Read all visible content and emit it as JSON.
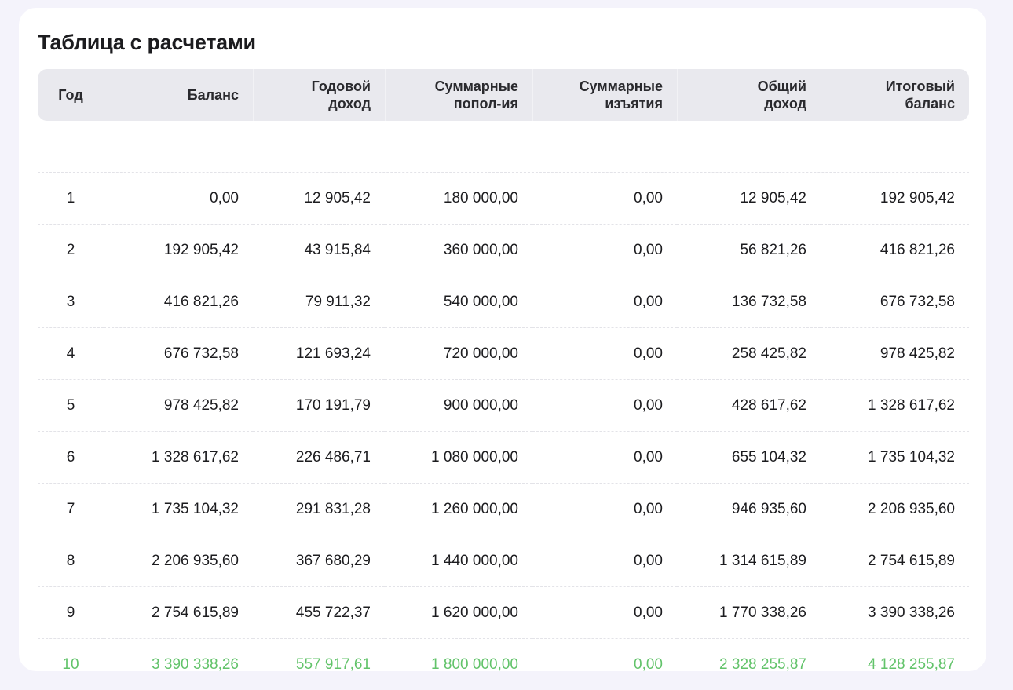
{
  "card": {
    "title": "Таблица с расчетами"
  },
  "table": {
    "headers": [
      [
        "Год"
      ],
      [
        "Баланс"
      ],
      [
        "Годовой",
        "доход"
      ],
      [
        "Суммарные",
        "попол-ия"
      ],
      [
        "Суммарные",
        "изъятия"
      ],
      [
        "Общий",
        "доход"
      ],
      [
        "Итоговый",
        "баланс"
      ]
    ],
    "rows": [
      [
        "1",
        "0,00",
        "12 905,42",
        "180 000,00",
        "0,00",
        "12 905,42",
        "192 905,42"
      ],
      [
        "2",
        "192 905,42",
        "43 915,84",
        "360 000,00",
        "0,00",
        "56 821,26",
        "416 821,26"
      ],
      [
        "3",
        "416 821,26",
        "79 911,32",
        "540 000,00",
        "0,00",
        "136 732,58",
        "676 732,58"
      ],
      [
        "4",
        "676 732,58",
        "121 693,24",
        "720 000,00",
        "0,00",
        "258 425,82",
        "978 425,82"
      ],
      [
        "5",
        "978 425,82",
        "170 191,79",
        "900 000,00",
        "0,00",
        "428 617,62",
        "1 328 617,62"
      ],
      [
        "6",
        "1 328 617,62",
        "226 486,71",
        "1 080 000,00",
        "0,00",
        "655 104,32",
        "1 735 104,32"
      ],
      [
        "7",
        "1 735 104,32",
        "291 831,28",
        "1 260 000,00",
        "0,00",
        "946 935,60",
        "2 206 935,60"
      ],
      [
        "8",
        "2 206 935,60",
        "367 680,29",
        "1 440 000,00",
        "0,00",
        "1 314 615,89",
        "2 754 615,89"
      ],
      [
        "9",
        "2 754 615,89",
        "455 722,37",
        "1 620 000,00",
        "0,00",
        "1 770 338,26",
        "3 390 338,26"
      ],
      [
        "10",
        "3 390 338,26",
        "557 917,61",
        "1 800 000,00",
        "0,00",
        "2 328 255,87",
        "4 128 255,87"
      ]
    ]
  },
  "colors": {
    "page_background": "#f4f3fb",
    "card_background": "#ffffff",
    "header_background": "#e9e9ee",
    "text": "#1c1c1f",
    "final_row_accent": "#62c36a",
    "row_divider": "#e3e3e8"
  }
}
